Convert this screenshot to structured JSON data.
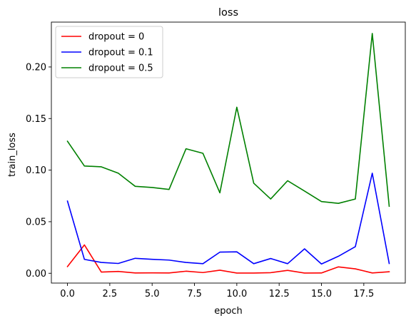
{
  "chart_data": {
    "type": "line",
    "title": "loss",
    "xlabel": "epoch",
    "ylabel": "train_loss",
    "xlim": [
      -0.95,
      19.95
    ],
    "ylim": [
      -0.0095,
      0.2435
    ],
    "xticks": [
      "0.0",
      "2.5",
      "5.0",
      "7.5",
      "10.0",
      "12.5",
      "15.0",
      "17.5"
    ],
    "yticks": [
      "0.00",
      "0.05",
      "0.10",
      "0.15",
      "0.20"
    ],
    "legend_position": "upper-left",
    "grid": false,
    "x": [
      0,
      1,
      2,
      3,
      4,
      5,
      6,
      7,
      8,
      9,
      10,
      11,
      12,
      13,
      14,
      15,
      16,
      17,
      18,
      19
    ],
    "series": [
      {
        "name": "dropout = 0",
        "color": "#ff0000",
        "values": [
          0.0065,
          0.0275,
          0.0012,
          0.0018,
          0.0003,
          0.0004,
          0.0003,
          0.002,
          0.0007,
          0.003,
          0.0002,
          0.0002,
          0.0006,
          0.0028,
          0.0002,
          0.0003,
          0.0062,
          0.0043,
          0.0003,
          0.0015
        ]
      },
      {
        "name": "dropout = 0.1",
        "color": "#0000ff",
        "values": [
          0.07,
          0.0135,
          0.0105,
          0.0095,
          0.0145,
          0.0135,
          0.0128,
          0.0105,
          0.0093,
          0.0205,
          0.0208,
          0.0093,
          0.0143,
          0.0093,
          0.0237,
          0.009,
          0.0165,
          0.0258,
          0.097,
          0.0095
        ]
      },
      {
        "name": "dropout = 0.5",
        "color": "#008000",
        "values": [
          0.128,
          0.104,
          0.1032,
          0.097,
          0.0843,
          0.0832,
          0.0813,
          0.1207,
          0.1163,
          0.078,
          0.161,
          0.0873,
          0.072,
          0.0897,
          0.0797,
          0.0695,
          0.0678,
          0.072,
          0.2325,
          0.065
        ]
      }
    ]
  }
}
